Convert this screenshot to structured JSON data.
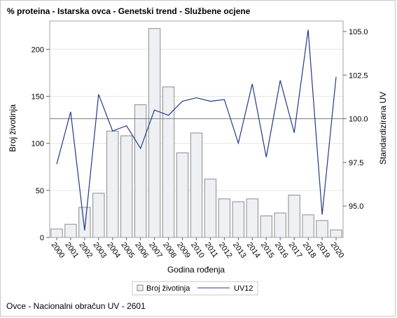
{
  "chart_data": {
    "type": "bar+line",
    "title": "% proteina - Istarska ovca - Genetski trend - Službene ocjene",
    "xlabel": "Godina rođenja",
    "ylabel_left": "Broj životinja",
    "ylabel_right": "Standardizirana UV",
    "categories": [
      "2000",
      "2001",
      "2002",
      "2003",
      "2004",
      "2005",
      "2006",
      "2007",
      "2008",
      "2009",
      "2010",
      "2011",
      "2012",
      "2013",
      "2014",
      "2015",
      "2016",
      "2017",
      "2018",
      "2019",
      "2020"
    ],
    "series": [
      {
        "name": "Broj životinja",
        "type": "bar",
        "axis": "left",
        "color": "#eef0f4",
        "values": [
          9,
          14,
          32,
          47,
          113,
          108,
          141,
          222,
          160,
          90,
          111,
          62,
          41,
          38,
          41,
          23,
          26,
          45,
          24,
          18,
          8
        ]
      },
      {
        "name": "UV12",
        "type": "line",
        "axis": "right",
        "color": "#203a88",
        "values": [
          97.4,
          100.4,
          93.6,
          101.4,
          99.3,
          99.6,
          98.3,
          100.5,
          100.2,
          101.0,
          101.2,
          101.0,
          101.1,
          98.6,
          102.0,
          97.8,
          102.2,
          99.2,
          105.1,
          94.5,
          102.4
        ]
      }
    ],
    "ylim_left": [
      0,
      230
    ],
    "yticks_left": [
      0,
      50,
      100,
      150,
      200
    ],
    "ylim_right": [
      93.2,
      105.6
    ],
    "yticks_right": [
      "95.0",
      "97.5",
      "100.0",
      "102.5",
      "105.0"
    ],
    "reference_line_right": 100.0,
    "grid": "horizontal",
    "legend_position": "bottom",
    "legend": [
      "Broj životinja",
      "UV12"
    ]
  },
  "footer": "Ovce - Nacionalni obračun UV - 2601"
}
